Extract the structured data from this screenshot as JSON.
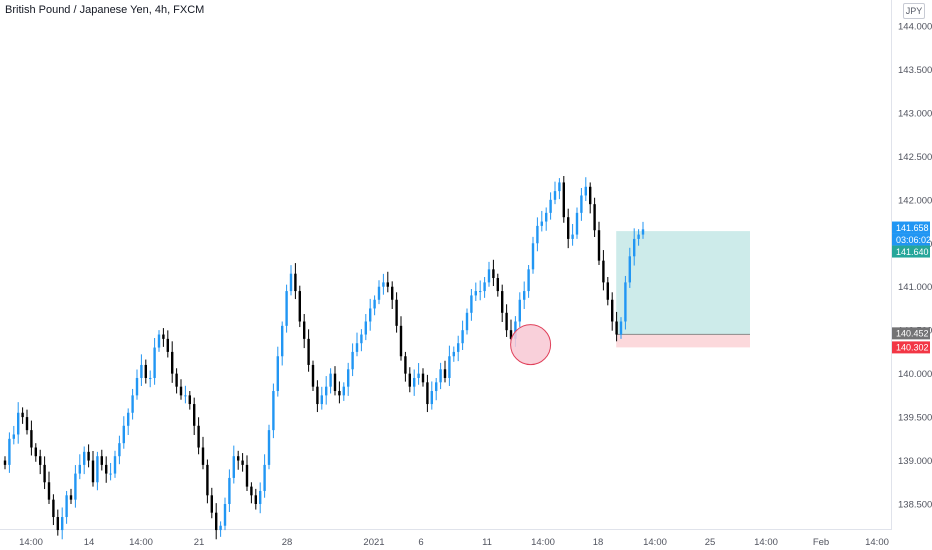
{
  "title": "British Pound / Japanese Yen, 4h, FXCM",
  "currency": "JPY",
  "colors": {
    "up": "#2196f3",
    "down": "#000000",
    "axis_line": "#e0e3eb",
    "target_zone": "#cdebea",
    "stop_zone": "#fcd9dc",
    "circle_fill": "#f8c8d4",
    "circle_stroke": "#e0405a",
    "tag_current": "#2196f3",
    "tag_countdown": "#2196f3",
    "tag_target": "#26a69a",
    "tag_entry": "#737375",
    "tag_stop": "#f23645"
  },
  "chart_data": {
    "type": "candlestick",
    "symbol": "GBPJPY",
    "timeframe": "4h",
    "source": "FXCM",
    "ylim": [
      138.3,
      144.15
    ],
    "y_ticks": [
      "144.000",
      "143.500",
      "143.000",
      "142.500",
      "142.000",
      "141.500",
      "141.000",
      "140.500",
      "140.000",
      "139.500",
      "139.000",
      "138.500"
    ],
    "x_ticks": [
      "14:00",
      "14",
      "14:00",
      "21",
      "28",
      "2021",
      "6",
      "11",
      "14:00",
      "18",
      "14:00",
      "25",
      "14:00",
      "Feb",
      "14:00"
    ],
    "close_path": [
      138.95,
      139.25,
      139.3,
      139.55,
      139.5,
      139.35,
      139.15,
      139.05,
      138.95,
      138.75,
      138.55,
      138.35,
      138.2,
      138.35,
      138.6,
      138.55,
      138.85,
      138.95,
      139.1,
      139.0,
      138.75,
      139.05,
      138.95,
      138.85,
      138.85,
      139.05,
      139.2,
      139.4,
      139.55,
      139.75,
      139.95,
      140.1,
      139.95,
      139.95,
      140.3,
      140.45,
      140.4,
      140.25,
      140.0,
      139.85,
      139.75,
      139.75,
      139.65,
      139.4,
      139.15,
      138.95,
      138.6,
      138.4,
      138.2,
      138.25,
      138.5,
      138.8,
      139.05,
      139.0,
      138.95,
      138.7,
      138.6,
      138.5,
      138.65,
      138.95,
      139.35,
      139.8,
      140.2,
      140.55,
      140.95,
      141.15,
      140.95,
      140.6,
      140.4,
      140.1,
      139.85,
      139.65,
      139.75,
      139.85,
      140.0,
      139.8,
      139.75,
      139.85,
      140.05,
      140.25,
      140.35,
      140.45,
      140.6,
      140.75,
      140.85,
      141.0,
      141.05,
      141.0,
      140.85,
      140.55,
      140.2,
      140.0,
      139.85,
      139.95,
      140.0,
      139.9,
      139.65,
      139.8,
      139.9,
      140.05,
      139.95,
      140.2,
      140.25,
      140.35,
      140.5,
      140.7,
      140.9,
      140.95,
      140.95,
      141.05,
      141.2,
      141.1,
      140.95,
      140.7,
      140.5,
      140.4,
      140.6,
      140.85,
      140.95,
      141.2,
      141.5,
      141.7,
      141.75,
      141.85,
      142.0,
      142.1,
      142.2,
      141.8,
      141.55,
      141.6,
      141.85,
      142.05,
      142.15,
      141.95,
      141.65,
      141.3,
      141.05,
      140.85,
      140.6,
      140.45,
      140.6,
      141.05,
      141.35,
      141.55,
      141.6,
      141.66
    ],
    "current_price": "141.658",
    "countdown": "03:06:02",
    "annotations": {
      "long_position": {
        "entry": "140.452",
        "target": "141.640",
        "stop": "140.302",
        "entry_value": 140.452,
        "target_value": 141.64,
        "stop_value": 140.302,
        "start_index": 138,
        "end_index": 165
      },
      "marker_circle": {
        "index": 119,
        "price": 140.38
      }
    },
    "grid": false,
    "legend": "none"
  }
}
